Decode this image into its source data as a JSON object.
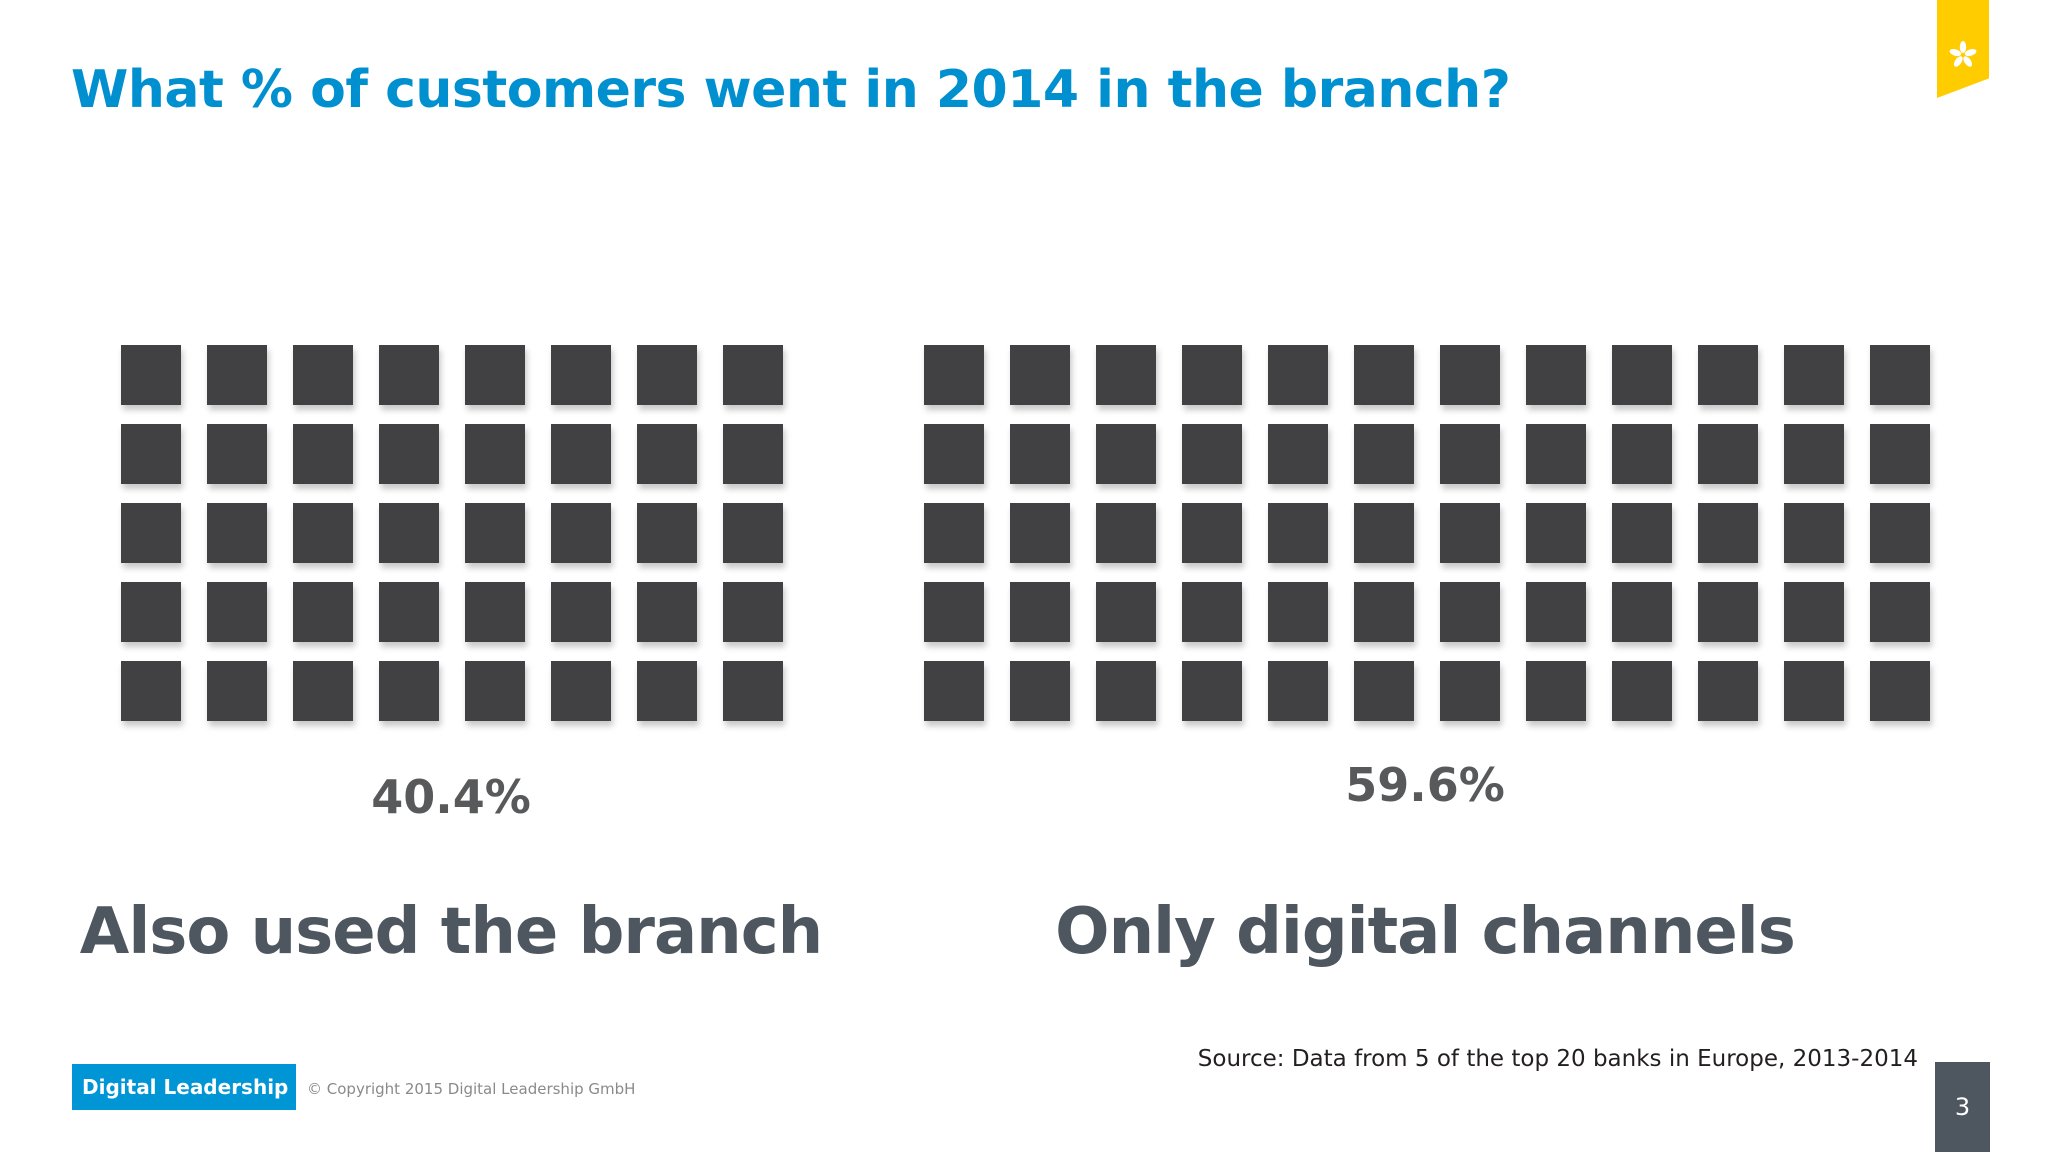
{
  "slide": {
    "title": "What % of customers went in 2014 in the branch?",
    "source": "Source: Data from 5 of the top 20 banks in Europe, 2013-2014",
    "page_number": "3",
    "icon": "asterisk-icon"
  },
  "footer": {
    "brand": "Digital Leadership",
    "copyright": "© Copyright 2015 Digital Leadership GmbH"
  },
  "colors": {
    "title": "#0090d0",
    "square": "#414042",
    "accent": "#ffcc00",
    "brand": "#0096d6"
  },
  "chart_data": {
    "type": "waffle",
    "categories": [
      "Also used the branch",
      "Only digital channels"
    ],
    "values": [
      40.4,
      59.6
    ],
    "value_labels": [
      "40.4%",
      "59.6%"
    ],
    "grids": [
      {
        "rows": 5,
        "cols": 8
      },
      {
        "rows": 5,
        "cols": 12
      }
    ]
  }
}
